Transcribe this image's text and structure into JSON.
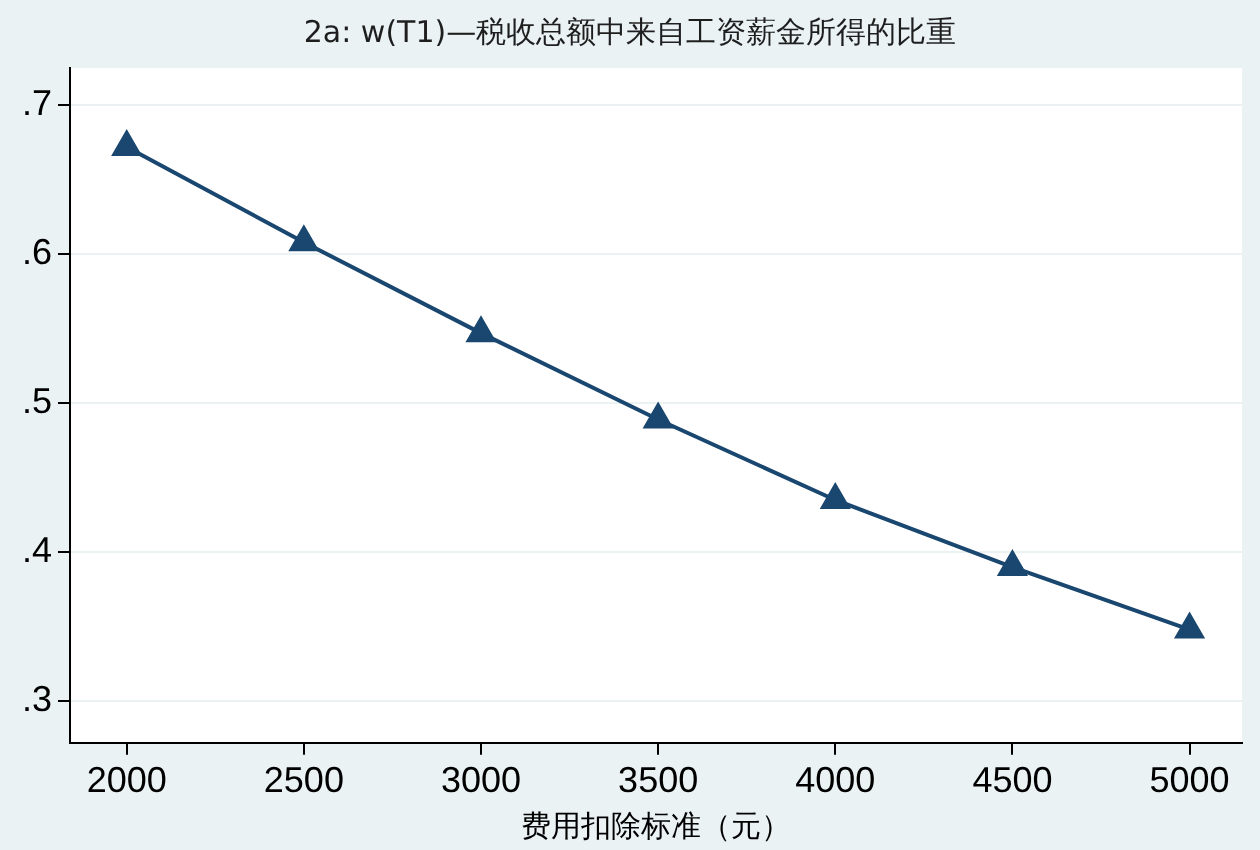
{
  "chart_data": {
    "type": "line",
    "title": "2a: w(T1)—税收总额中来自工资薪金所得的比重",
    "xlabel": "费用扣除标准（元）",
    "x": [
      2000,
      2500,
      3000,
      3500,
      4000,
      4500,
      5000
    ],
    "series": [
      {
        "color": "#1a476f",
        "values": [
          0.672,
          0.608,
          0.547,
          0.489,
          0.435,
          0.39,
          0.348
        ]
      }
    ],
    "xlim": [
      1840,
      5148
    ],
    "xticks": [
      2000,
      2500,
      3000,
      3500,
      4000,
      4500,
      5000
    ],
    "ylim": [
      0.272,
      0.725
    ],
    "yticks": [
      {
        "value": 0.3,
        "label": ".3"
      },
      {
        "value": 0.4,
        "label": ".4"
      },
      {
        "value": 0.5,
        "label": ".5"
      },
      {
        "value": 0.6,
        "label": ".6"
      },
      {
        "value": 0.7,
        "label": ".7"
      }
    ],
    "grid": "y",
    "legend": false,
    "marker": "triangle",
    "line_style": "solid"
  }
}
